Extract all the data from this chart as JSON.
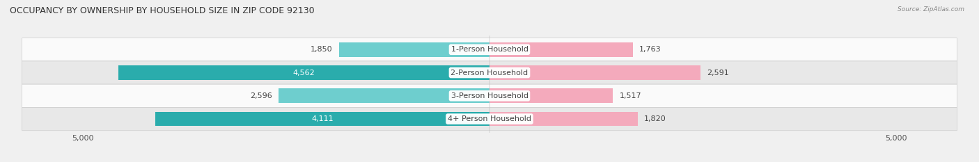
{
  "title": "OCCUPANCY BY OWNERSHIP BY HOUSEHOLD SIZE IN ZIP CODE 92130",
  "source": "Source: ZipAtlas.com",
  "categories": [
    "1-Person Household",
    "2-Person Household",
    "3-Person Household",
    "4+ Person Household"
  ],
  "owner_values": [
    1850,
    4562,
    2596,
    4111
  ],
  "renter_values": [
    1763,
    2591,
    1517,
    1820
  ],
  "owner_color_light": "#6ECECE",
  "owner_color_dark": "#2AACAC",
  "renter_color_light": "#F4AABC",
  "renter_color_dark": "#EE5B7A",
  "x_max": 5000,
  "bar_height": 0.62,
  "background_color": "#f0f0f0",
  "row_colors_light": [
    "#f7f7f7",
    "#f7f7f7",
    "#f7f7f7",
    "#f7f7f7"
  ],
  "row_bg_light": "#fafafa",
  "row_bg_dark": "#e8e8e8",
  "title_fontsize": 9,
  "label_fontsize": 8,
  "tick_fontsize": 8,
  "inside_label_threshold": 3000
}
